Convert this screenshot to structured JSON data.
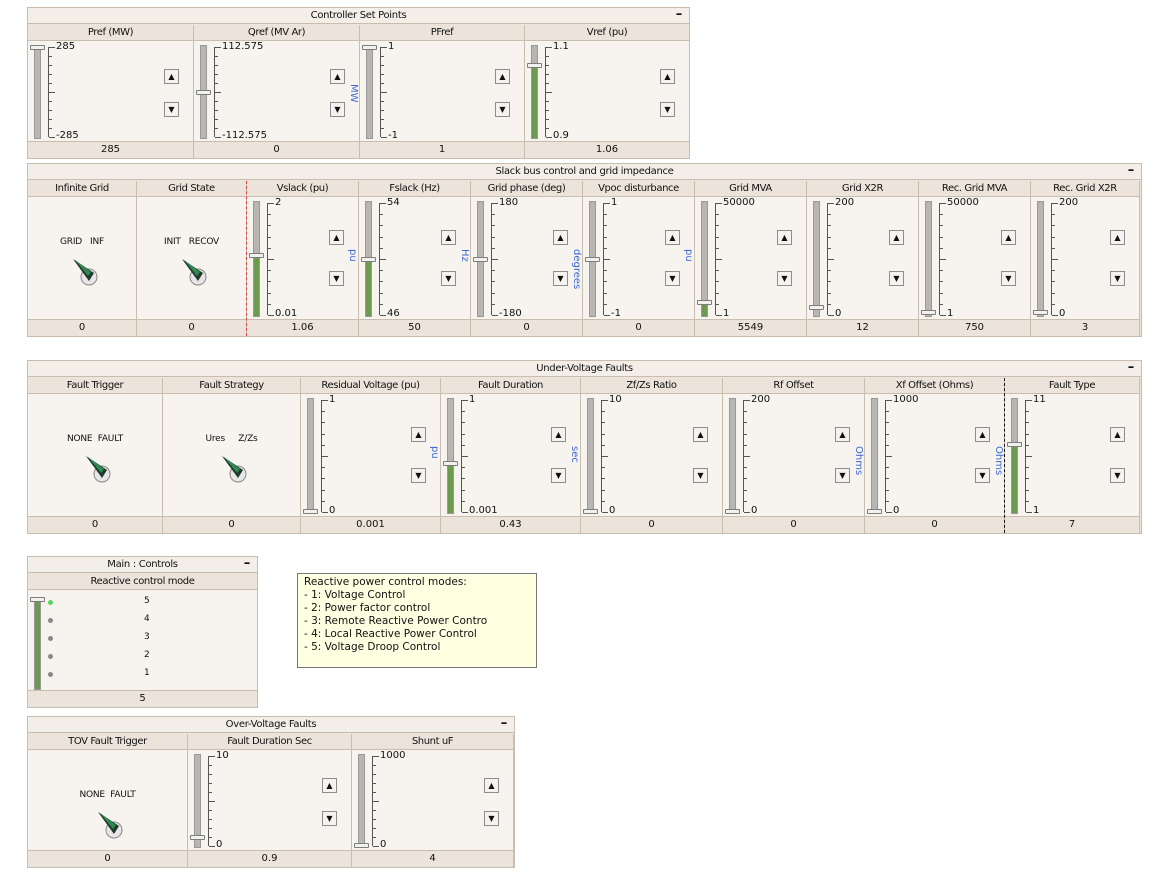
{
  "controller_set_points": {
    "title": "Controller Set Points",
    "minimize_label": "–",
    "cells": [
      {
        "head": "Pref (MW)",
        "max": "285",
        "min": "-285",
        "value": "285",
        "unit": "",
        "frac": 1.0,
        "fill": false
      },
      {
        "head": "Qref (MV Ar)",
        "max": "112.575",
        "min": "-112.575",
        "value": "0",
        "unit": "MW",
        "frac": 0.5,
        "fill": false
      },
      {
        "head": "PFref",
        "max": "1",
        "min": "-1",
        "value": "1",
        "unit": "",
        "frac": 1.0,
        "fill": false
      },
      {
        "head": "Vref (pu)",
        "max": "1.1",
        "min": "0.9",
        "value": "1.06",
        "unit": "",
        "frac": 0.8,
        "fill": true
      }
    ]
  },
  "slack_bus": {
    "title": "Slack bus control and grid impedance",
    "minimize_label": "–",
    "infinite_grid": {
      "head": "Infinite Grid",
      "labels": "GRID   INF",
      "value": "0"
    },
    "grid_state": {
      "head": "Grid State",
      "labels": "INIT   RECOV",
      "value": "0"
    },
    "cells": [
      {
        "head": "Vslack (pu)",
        "max": "2",
        "min": "0.01",
        "value": "1.06",
        "unit": "pu",
        "frac": 0.53,
        "fill": true
      },
      {
        "head": "Fslack (Hz)",
        "max": "54",
        "min": "46",
        "value": "50",
        "unit": "Hz",
        "frac": 0.5,
        "fill": true
      },
      {
        "head": "Grid phase (deg)",
        "max": "180",
        "min": "-180",
        "value": "0",
        "unit": "degrees",
        "frac": 0.5,
        "fill": false
      },
      {
        "head": "Vpoc disturbance",
        "max": "1",
        "min": "-1",
        "value": "0",
        "unit": "pu",
        "frac": 0.5,
        "fill": false
      },
      {
        "head": "Grid MVA",
        "max": "50000",
        "min": "1",
        "value": "5549",
        "unit": "",
        "frac": 0.11,
        "fill": true
      },
      {
        "head": "Grid X2R",
        "max": "200",
        "min": "0",
        "value": "12",
        "unit": "",
        "frac": 0.06,
        "fill": false
      },
      {
        "head": "Rec. Grid MVA",
        "max": "50000",
        "min": "1",
        "value": "750",
        "unit": "",
        "frac": 0.02,
        "fill": false
      },
      {
        "head": "Rec. Grid X2R",
        "max": "200",
        "min": "0",
        "value": "3",
        "unit": "",
        "frac": 0.02,
        "fill": false
      }
    ]
  },
  "under_voltage": {
    "title": "Under-Voltage Faults",
    "minimize_label": "–",
    "fault_trigger": {
      "head": "Fault Trigger",
      "labels": "NONE  FAULT",
      "value": "0"
    },
    "fault_strategy": {
      "head": "Fault Strategy",
      "labels": "Ures     Z/Zs",
      "value": "0"
    },
    "cells": [
      {
        "head": "Residual Voltage (pu)",
        "max": "1",
        "min": "0",
        "value": "0.001",
        "unit": "pu",
        "frac": 0.0,
        "fill": false
      },
      {
        "head": "Fault Duration",
        "max": "1",
        "min": "0.001",
        "value": "0.43",
        "unit": "sec",
        "frac": 0.43,
        "fill": true
      },
      {
        "head": "Zf/Zs Ratio",
        "max": "10",
        "min": "0",
        "value": "0",
        "unit": "",
        "frac": 0.0,
        "fill": false
      },
      {
        "head": "Rf Offset",
        "max": "200",
        "min": "0",
        "value": "0",
        "unit": "Ohms",
        "frac": 0.0,
        "fill": false
      },
      {
        "head": "Xf Offset (Ohms)",
        "max": "1000",
        "min": "0",
        "value": "0",
        "unit": "Ohms",
        "frac": 0.0,
        "fill": false
      },
      {
        "head": "Fault Type",
        "max": "11",
        "min": "1",
        "value": "7",
        "unit": "",
        "frac": 0.6,
        "fill": true
      }
    ]
  },
  "main_controls": {
    "title": "Main : Controls",
    "minimize_label": "–",
    "head": "Reactive control mode",
    "options": [
      "5",
      "4",
      "3",
      "2",
      "1"
    ],
    "value": "5",
    "frac": 1.0
  },
  "note": {
    "title": "Reactive power control modes:",
    "lines": [
      "- 1: Voltage Control",
      "- 2: Power factor control",
      "- 3: Remote Reactive Power Contro",
      "- 4: Local Reactive Power Control",
      "- 5: Voltage Droop Control"
    ]
  },
  "over_voltage": {
    "title": "Over-Voltage Faults",
    "minimize_label": "–",
    "tov_trigger": {
      "head": "TOV Fault Trigger",
      "labels": "NONE  FAULT",
      "value": "0"
    },
    "cells": [
      {
        "head": "Fault Duration Sec",
        "max": "10",
        "min": "0",
        "value": "0.9",
        "unit": "",
        "frac": 0.09,
        "fill": false
      },
      {
        "head": "Shunt uF",
        "max": "1000",
        "min": "0",
        "value": "4",
        "unit": "",
        "frac": 0.0,
        "fill": false
      }
    ]
  },
  "colors": {
    "fill": "#6e9a50",
    "panel": "#ece5dc",
    "unit": "#3a6ad6",
    "note_bg": "#ffffe1"
  }
}
